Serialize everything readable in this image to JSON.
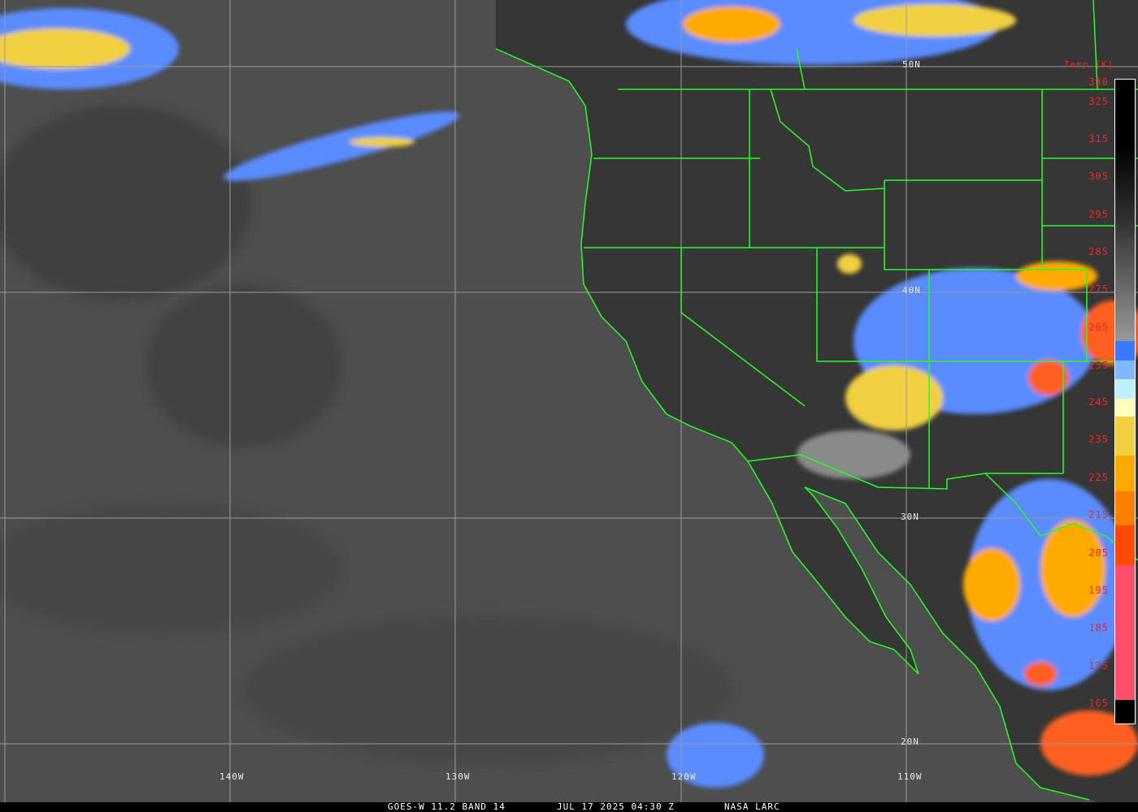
{
  "footer": {
    "satellite": "GOES-W 11.2 BAND 14",
    "datetime": "JUL 17 2025 04:30 Z",
    "credit": "NASA LARC"
  },
  "latitude_labels": [
    "50N",
    "40N",
    "30N",
    "20N"
  ],
  "longitude_labels": [
    "140W",
    "130W",
    "120W",
    "110W"
  ],
  "colorbar": {
    "title": "Temp [K]",
    "ticks": [
      "330",
      "325",
      "315",
      "305",
      "295",
      "285",
      "275",
      "265",
      "255",
      "245",
      "235",
      "225",
      "215",
      "205",
      "195",
      "185",
      "175",
      "165"
    ],
    "colors": {
      "cold_pink": "#ff4f6a",
      "red_orange": "#ff4a00",
      "orange": "#ff8000",
      "amber": "#ffaa00",
      "yellow": "#f0d040",
      "pale_yellow": "#ffffc0",
      "light_cyan": "#c0f0ff",
      "light_blue": "#80b8ff",
      "blue": "#3a78ff"
    }
  },
  "border_color": "#20ff20"
}
